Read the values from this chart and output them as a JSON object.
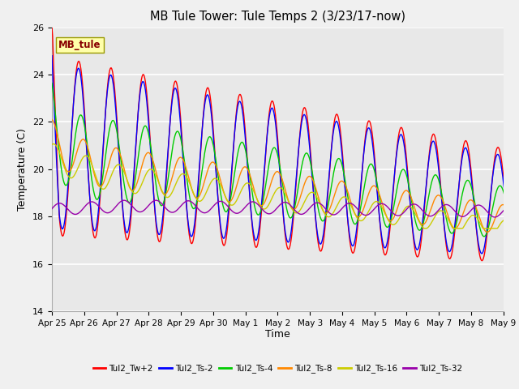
{
  "title": "MB Tule Tower: Tule Temps 2 (3/23/17-now)",
  "xlabel": "Time",
  "ylabel": "Temperature (C)",
  "ylim": [
    14,
    26
  ],
  "yticks": [
    14,
    16,
    18,
    20,
    22,
    24,
    26
  ],
  "fig_bg_color": "#f0f0f0",
  "plot_bg_color": "#e8e8e8",
  "legend_label": "MB_tule",
  "x_tick_labels": [
    "Apr 25",
    "Apr 26",
    "Apr 27",
    "Apr 28",
    "Apr 29",
    "Apr 30",
    "May 1",
    "May 2",
    "May 3",
    "May 4",
    "May 5",
    "May 6",
    "May 7",
    "May 8",
    "May 9"
  ],
  "series": [
    {
      "name": "Tul2_Tw+2",
      "color": "#ff0000"
    },
    {
      "name": "Tul2_Ts-2",
      "color": "#0000ff"
    },
    {
      "name": "Tul2_Ts-4",
      "color": "#00cc00"
    },
    {
      "name": "Tul2_Ts-8",
      "color": "#ff8800"
    },
    {
      "name": "Tul2_Ts-16",
      "color": "#cccc00"
    },
    {
      "name": "Tul2_Ts-32",
      "color": "#9900aa"
    }
  ]
}
